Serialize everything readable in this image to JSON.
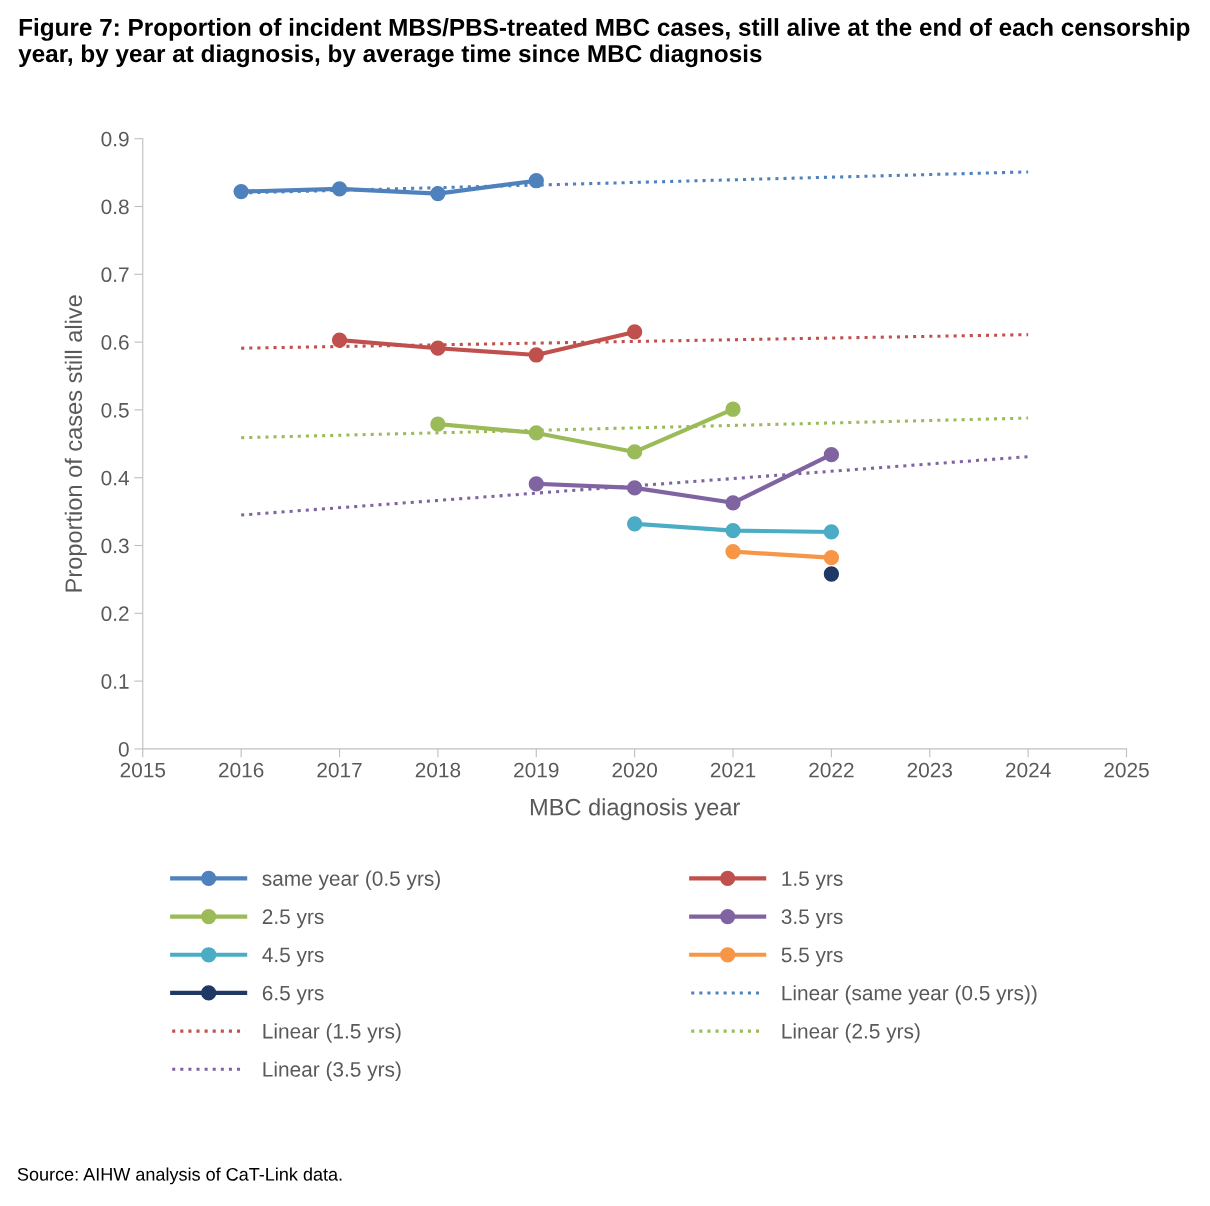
{
  "chart_data": {
    "type": "line",
    "title": "Figure 7: Proportion of incident MBS/PBS-treated MBC cases, still alive at the end of each censorship year, by year at diagnosis, by average time since MBC diagnosis",
    "xlabel": "MBC diagnosis year",
    "ylabel": "Proportion of cases still alive",
    "xlim": [
      2015,
      2025
    ],
    "xticks": [
      2015,
      2016,
      2017,
      2018,
      2019,
      2020,
      2021,
      2022,
      2023,
      2024,
      2025
    ],
    "ylim": [
      0,
      0.9
    ],
    "yticks": [
      0,
      0.1,
      0.2,
      0.3,
      0.4,
      0.5,
      0.6,
      0.7,
      0.8,
      0.9
    ],
    "grid": false,
    "legend": "bottom",
    "marker": "circle",
    "line_style": "solid",
    "series": [
      {
        "name": "same year (0.5 yrs)",
        "color": "#4f81bd",
        "x": [
          2016,
          2017,
          2018,
          2019
        ],
        "values": [
          0.822,
          0.826,
          0.819,
          0.838
        ]
      },
      {
        "name": "1.5 yrs",
        "color": "#c0504d",
        "x": [
          2017,
          2018,
          2019,
          2020
        ],
        "values": [
          0.603,
          0.591,
          0.581,
          0.615
        ]
      },
      {
        "name": "2.5 yrs",
        "color": "#9bbb59",
        "x": [
          2018,
          2019,
          2020,
          2021
        ],
        "values": [
          0.479,
          0.466,
          0.438,
          0.501
        ]
      },
      {
        "name": "3.5 yrs",
        "color": "#8064a2",
        "x": [
          2019,
          2020,
          2021,
          2022
        ],
        "values": [
          0.391,
          0.385,
          0.363,
          0.434
        ]
      },
      {
        "name": "4.5 yrs",
        "color": "#4bacc6",
        "x": [
          2020,
          2021,
          2022
        ],
        "values": [
          0.332,
          0.322,
          0.32
        ]
      },
      {
        "name": "5.5 yrs",
        "color": "#f79646",
        "x": [
          2021,
          2022
        ],
        "values": [
          0.291,
          0.282
        ]
      },
      {
        "name": "6.5 yrs",
        "color": "#1f3864",
        "x": [
          2022
        ],
        "values": [
          0.258
        ]
      },
      {
        "name": "Linear (same year (0.5 yrs))",
        "color": "#4f81bd",
        "x": [
          2016,
          2024
        ],
        "values": [
          0.82,
          0.851
        ],
        "marker": "none",
        "line_style": "dotted"
      },
      {
        "name": "Linear (1.5 yrs)",
        "color": "#c0504d",
        "x": [
          2016,
          2024
        ],
        "values": [
          0.591,
          0.611
        ],
        "marker": "none",
        "line_style": "dotted"
      },
      {
        "name": "Linear (2.5 yrs)",
        "color": "#9bbb59",
        "x": [
          2016,
          2024
        ],
        "values": [
          0.459,
          0.488
        ],
        "marker": "none",
        "line_style": "dotted"
      },
      {
        "name": "Linear (3.5 yrs)",
        "color": "#8064a2",
        "x": [
          2016,
          2024
        ],
        "values": [
          0.345,
          0.431
        ],
        "marker": "none",
        "line_style": "dotted"
      }
    ],
    "annotations": [
      "Source: AIHW analysis of CaT-Link data."
    ]
  }
}
